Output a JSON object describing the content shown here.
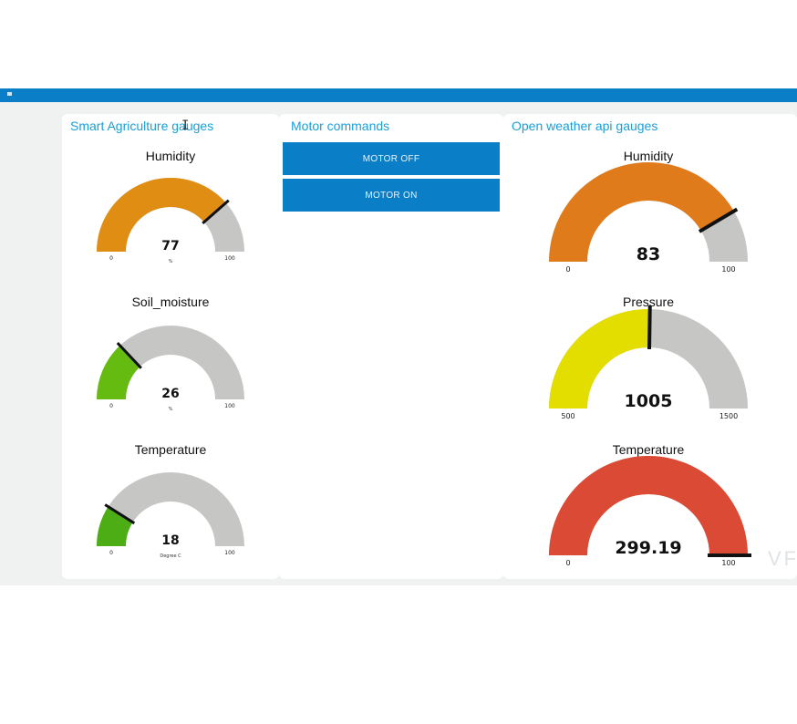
{
  "left_group": {
    "title": "Smart Agriculture gauges",
    "gauges": [
      {
        "title": "Humidity",
        "value": 77,
        "display": "77",
        "min": 0,
        "max": 100,
        "min_label": "0",
        "max_label": "100",
        "unit": "%",
        "color": "#e08d14"
      },
      {
        "title": "Soil_moisture",
        "value": 26,
        "display": "26",
        "min": 0,
        "max": 100,
        "min_label": "0",
        "max_label": "100",
        "unit": "%",
        "color": "#66bb10"
      },
      {
        "title": "Temperature",
        "value": 18,
        "display": "18",
        "min": 0,
        "max": 100,
        "min_label": "0",
        "max_label": "100",
        "unit": "Degree C",
        "color": "#4cae14"
      }
    ]
  },
  "middle_group": {
    "title": "Motor commands",
    "buttons": [
      {
        "label": "MOTOR OFF"
      },
      {
        "label": "MOTOR ON"
      }
    ]
  },
  "right_group": {
    "title": "Open weather api gauges",
    "gauges": [
      {
        "title": "Humidity",
        "value": 83,
        "display": "83",
        "min": 0,
        "max": 100,
        "min_label": "0",
        "max_label": "100",
        "color": "#e07b1c"
      },
      {
        "title": "Pressure",
        "value": 1005,
        "display": "1005",
        "min": 500,
        "max": 1500,
        "min_label": "500",
        "max_label": "1500",
        "color": "#e3de00"
      },
      {
        "title": "Temperature",
        "value": 299.19,
        "display": "299.19",
        "min": 0,
        "max": 100,
        "min_label": "0",
        "max_label": "100",
        "color": "#da4a34"
      }
    ]
  },
  "colors": {
    "accent": "#0a7ec7",
    "group_title": "#1a9fd6",
    "gauge_track": "#c6c7c5",
    "needle": "#111111"
  },
  "watermark": "VF"
}
